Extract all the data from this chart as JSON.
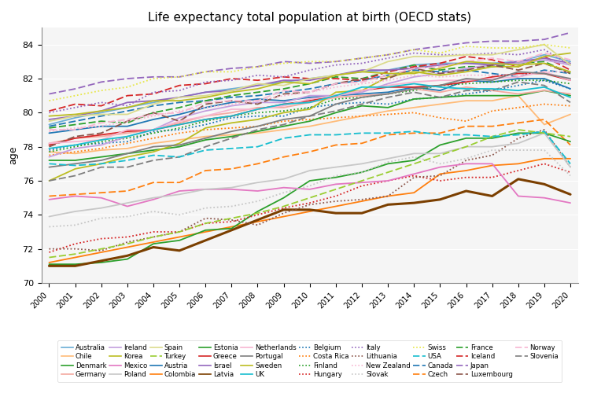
{
  "title": "Life expectancy total population at birth (OECD stats)",
  "ylabel": "age",
  "years": [
    2000,
    2001,
    2002,
    2003,
    2004,
    2005,
    2006,
    2007,
    2008,
    2009,
    2010,
    2011,
    2012,
    2013,
    2014,
    2015,
    2016,
    2017,
    2018,
    2019,
    2020
  ],
  "ylim": [
    70,
    85
  ],
  "series": {
    "Australia": {
      "color": "#6baed6",
      "linestyle": "solid",
      "lw": 1.3,
      "data": [
        79.3,
        79.7,
        80.0,
        80.3,
        80.6,
        80.9,
        81.2,
        81.4,
        81.6,
        81.8,
        82.0,
        82.2,
        82.4,
        82.5,
        82.8,
        82.9,
        82.9,
        82.9,
        83.0,
        83.4,
        83.0
      ]
    },
    "Austria": {
      "color": "#1f77b4",
      "linestyle": "solid",
      "lw": 1.3,
      "data": [
        78.8,
        79.0,
        79.2,
        79.2,
        79.6,
        79.9,
        80.3,
        80.6,
        80.8,
        80.7,
        80.9,
        81.0,
        81.1,
        81.2,
        81.5,
        81.3,
        81.9,
        81.8,
        82.0,
        82.0,
        81.4
      ]
    },
    "Belgium": {
      "color": "#1f77b4",
      "linestyle": "dotted",
      "lw": 1.3,
      "data": [
        77.8,
        78.1,
        78.2,
        78.3,
        78.9,
        79.0,
        79.3,
        79.7,
        79.8,
        79.8,
        80.3,
        80.5,
        80.6,
        80.5,
        80.8,
        80.9,
        81.1,
        81.3,
        81.6,
        81.9,
        81.4
      ]
    },
    "Canada": {
      "color": "#1f77b4",
      "linestyle": "dashed",
      "lw": 1.3,
      "data": [
        79.2,
        79.5,
        79.8,
        80.1,
        80.4,
        80.6,
        80.7,
        80.9,
        81.0,
        81.2,
        81.4,
        81.7,
        81.9,
        82.2,
        82.5,
        82.4,
        82.5,
        82.3,
        82.1,
        82.5,
        82.3
      ]
    },
    "Chile": {
      "color": "#ffbb78",
      "linestyle": "solid",
      "lw": 1.3,
      "data": [
        77.7,
        77.6,
        77.8,
        77.9,
        78.2,
        78.4,
        78.6,
        78.7,
        78.8,
        79.0,
        79.2,
        79.5,
        79.8,
        80.1,
        80.3,
        80.5,
        80.7,
        80.7,
        81.0,
        79.3,
        79.9
      ]
    },
    "Colombia": {
      "color": "#ff7f0e",
      "linestyle": "solid",
      "lw": 1.3,
      "data": [
        71.2,
        71.5,
        71.8,
        72.1,
        72.4,
        72.7,
        73.0,
        73.3,
        73.6,
        73.9,
        74.2,
        74.5,
        74.8,
        75.1,
        75.3,
        76.4,
        76.6,
        76.9,
        77.0,
        77.3,
        77.3
      ]
    },
    "Costa Rica": {
      "color": "#ff7f0e",
      "linestyle": "dotted",
      "lw": 1.3,
      "data": [
        77.5,
        77.7,
        77.9,
        78.2,
        78.5,
        78.8,
        79.0,
        79.1,
        79.2,
        79.5,
        79.6,
        79.7,
        79.8,
        79.9,
        80.0,
        79.7,
        79.5,
        80.1,
        80.3,
        80.5,
        80.4
      ]
    },
    "Czech": {
      "color": "#ff7f0e",
      "linestyle": "dashed",
      "lw": 1.3,
      "data": [
        75.1,
        75.2,
        75.3,
        75.4,
        75.9,
        75.9,
        76.6,
        76.7,
        77.0,
        77.4,
        77.7,
        78.1,
        78.2,
        78.7,
        78.8,
        78.8,
        79.2,
        79.2,
        79.4,
        79.6,
        78.1
      ]
    },
    "Denmark": {
      "color": "#2ca02c",
      "linestyle": "solid",
      "lw": 1.3,
      "data": [
        77.2,
        77.2,
        77.4,
        77.6,
        77.8,
        78.0,
        78.4,
        78.6,
        78.9,
        79.2,
        79.5,
        80.0,
        80.4,
        80.3,
        80.8,
        80.9,
        81.0,
        81.0,
        81.0,
        81.3,
        81.0
      ]
    },
    "Estonia": {
      "color": "#2ca02c",
      "linestyle": "solid",
      "lw": 1.3,
      "data": [
        71.1,
        71.1,
        71.2,
        71.4,
        72.3,
        72.5,
        73.1,
        73.2,
        74.2,
        75.0,
        76.0,
        76.2,
        76.5,
        77.0,
        77.2,
        78.1,
        78.5,
        78.5,
        78.8,
        78.8,
        78.3
      ]
    },
    "Finland": {
      "color": "#2ca02c",
      "linestyle": "dotted",
      "lw": 1.3,
      "data": [
        77.7,
        78.0,
        78.3,
        78.5,
        78.8,
        79.1,
        79.5,
        79.8,
        80.0,
        80.1,
        80.3,
        80.8,
        80.9,
        81.1,
        81.3,
        81.6,
        81.7,
        81.8,
        81.9,
        81.9,
        81.7
      ]
    },
    "France": {
      "color": "#2ca02c",
      "linestyle": "dashed",
      "lw": 1.3,
      "data": [
        79.1,
        79.3,
        79.5,
        79.4,
        80.0,
        80.3,
        80.7,
        81.0,
        81.2,
        81.4,
        81.7,
        82.1,
        82.0,
        82.4,
        82.8,
        82.5,
        82.7,
        82.7,
        82.9,
        83.0,
        82.3
      ]
    },
    "Germany": {
      "color": "#f4a9a0",
      "linestyle": "solid",
      "lw": 1.3,
      "data": [
        78.2,
        78.5,
        78.6,
        78.8,
        79.0,
        79.4,
        79.8,
        80.0,
        80.3,
        80.3,
        80.6,
        80.9,
        81.0,
        81.1,
        81.4,
        81.2,
        81.5,
        81.3,
        81.1,
        81.3,
        81.1
      ]
    },
    "Greece": {
      "color": "#d62728",
      "linestyle": "solid",
      "lw": 1.3,
      "data": [
        78.1,
        78.5,
        78.7,
        78.9,
        79.0,
        79.3,
        79.6,
        79.8,
        80.2,
        80.5,
        80.7,
        81.0,
        81.3,
        81.5,
        81.5,
        81.6,
        81.8,
        82.1,
        82.3,
        82.3,
        81.9
      ]
    },
    "Hungary": {
      "color": "#d62728",
      "linestyle": "dotted",
      "lw": 1.3,
      "data": [
        71.8,
        72.3,
        72.6,
        72.7,
        73.0,
        73.0,
        73.5,
        73.6,
        74.0,
        74.4,
        74.7,
        75.1,
        75.7,
        76.0,
        76.3,
        76.0,
        76.2,
        76.2,
        76.6,
        77.0,
        76.5
      ]
    },
    "Iceland": {
      "color": "#d62728",
      "linestyle": "dashed",
      "lw": 1.3,
      "data": [
        80.1,
        80.5,
        80.4,
        81.0,
        81.1,
        81.6,
        81.7,
        82.0,
        81.9,
        82.1,
        82.0,
        82.0,
        81.9,
        82.4,
        82.7,
        82.9,
        83.3,
        83.1,
        82.7,
        83.3,
        82.5
      ]
    },
    "Ireland": {
      "color": "#c49fde",
      "linestyle": "solid",
      "lw": 1.3,
      "data": [
        77.4,
        77.9,
        78.1,
        78.6,
        79.0,
        79.7,
        80.1,
        80.4,
        80.6,
        80.6,
        81.0,
        81.0,
        81.2,
        81.7,
        82.1,
        82.3,
        82.6,
        82.8,
        82.9,
        83.1,
        82.8
      ]
    },
    "Israel": {
      "color": "#9467bd",
      "linestyle": "solid",
      "lw": 1.3,
      "data": [
        79.6,
        79.8,
        80.1,
        80.6,
        80.7,
        80.9,
        81.2,
        81.3,
        81.6,
        81.9,
        81.9,
        82.2,
        82.5,
        82.5,
        82.6,
        82.8,
        82.9,
        82.8,
        83.0,
        83.2,
        82.9
      ]
    },
    "Italy": {
      "color": "#9467bd",
      "linestyle": "dotted",
      "lw": 1.3,
      "data": [
        80.0,
        80.3,
        80.6,
        80.4,
        81.2,
        81.3,
        81.8,
        81.9,
        82.2,
        82.1,
        82.5,
        82.8,
        82.9,
        83.2,
        83.5,
        83.4,
        83.4,
        83.5,
        83.4,
        83.7,
        82.8
      ]
    },
    "Japan": {
      "color": "#9467bd",
      "linestyle": "dashed",
      "lw": 1.3,
      "data": [
        81.1,
        81.4,
        81.8,
        82.0,
        82.1,
        82.1,
        82.4,
        82.6,
        82.7,
        83.0,
        82.9,
        83.0,
        83.2,
        83.4,
        83.7,
        83.9,
        84.1,
        84.2,
        84.2,
        84.3,
        84.7
      ]
    },
    "Korea": {
      "color": "#bcbd22",
      "linestyle": "solid",
      "lw": 1.3,
      "data": [
        76.0,
        76.7,
        77.0,
        77.4,
        77.7,
        78.2,
        79.1,
        79.4,
        79.6,
        80.0,
        80.2,
        81.2,
        81.3,
        82.1,
        82.4,
        82.2,
        82.4,
        82.7,
        82.7,
        83.3,
        83.5
      ]
    },
    "Latvia": {
      "color": "#7b3f00",
      "linestyle": "solid",
      "lw": 2.2,
      "data": [
        71.0,
        71.0,
        71.3,
        71.6,
        72.1,
        71.9,
        72.5,
        73.1,
        73.7,
        74.3,
        74.3,
        74.1,
        74.1,
        74.6,
        74.7,
        74.9,
        75.4,
        75.1,
        76.1,
        75.8,
        75.2
      ]
    },
    "Lithuania": {
      "color": "#8c564b",
      "linestyle": "dotted",
      "lw": 1.3,
      "data": [
        72.0,
        72.0,
        71.9,
        72.4,
        72.7,
        73.0,
        73.8,
        73.7,
        73.4,
        74.1,
        74.6,
        74.8,
        74.9,
        75.1,
        76.2,
        76.3,
        77.2,
        77.5,
        78.5,
        79.0,
        76.8
      ]
    },
    "Luxembourg": {
      "color": "#8c564b",
      "linestyle": "dashed",
      "lw": 1.3,
      "data": [
        78.0,
        78.6,
        78.8,
        79.5,
        80.0,
        79.5,
        80.5,
        80.7,
        80.5,
        81.1,
        81.2,
        81.7,
        82.0,
        82.0,
        82.6,
        82.3,
        82.5,
        82.8,
        82.5,
        82.9,
        82.3
      ]
    },
    "Mexico": {
      "color": "#e377c2",
      "linestyle": "solid",
      "lw": 1.3,
      "data": [
        74.9,
        75.1,
        75.0,
        74.5,
        74.9,
        75.4,
        75.5,
        75.5,
        75.4,
        75.6,
        75.5,
        75.8,
        75.9,
        76.0,
        76.4,
        76.8,
        77.0,
        77.0,
        75.1,
        75.0,
        74.7
      ]
    },
    "Netherlands": {
      "color": "#f7b6d2",
      "linestyle": "solid",
      "lw": 1.3,
      "data": [
        78.2,
        78.3,
        78.4,
        79.0,
        79.0,
        79.5,
        79.8,
        80.2,
        80.2,
        80.4,
        80.8,
        81.0,
        81.3,
        81.6,
        81.8,
        81.9,
        81.9,
        82.0,
        82.1,
        82.4,
        81.9
      ]
    },
    "New Zealand": {
      "color": "#f7b6d2",
      "linestyle": "dotted",
      "lw": 1.3,
      "data": [
        78.9,
        79.1,
        79.2,
        79.5,
        79.8,
        80.1,
        80.3,
        80.5,
        80.7,
        81.0,
        81.2,
        81.5,
        81.7,
        81.9,
        82.2,
        82.1,
        82.2,
        82.2,
        82.2,
        82.4,
        82.4
      ]
    },
    "Norway": {
      "color": "#f7b6d2",
      "linestyle": "dashed",
      "lw": 1.3,
      "data": [
        79.0,
        79.0,
        79.4,
        79.6,
        79.9,
        80.0,
        80.6,
        80.7,
        80.7,
        81.3,
        81.2,
        81.7,
        81.8,
        82.2,
        82.6,
        82.7,
        83.0,
        83.2,
        83.0,
        83.5,
        83.1
      ]
    },
    "Poland": {
      "color": "#c7c7c7",
      "linestyle": "solid",
      "lw": 1.3,
      "data": [
        73.9,
        74.2,
        74.4,
        74.7,
        75.0,
        75.2,
        75.5,
        75.6,
        75.9,
        76.1,
        76.6,
        76.8,
        77.0,
        77.3,
        77.6,
        77.6,
        78.0,
        78.0,
        78.2,
        78.8,
        76.8
      ]
    },
    "Portugal": {
      "color": "#7f7f7f",
      "linestyle": "solid",
      "lw": 1.3,
      "data": [
        76.8,
        77.0,
        77.2,
        77.6,
        78.0,
        78.1,
        78.5,
        78.9,
        79.2,
        79.6,
        79.8,
        80.5,
        80.9,
        81.1,
        81.4,
        81.6,
        82.0,
        81.9,
        82.4,
        82.3,
        82.0
      ]
    },
    "Slovak": {
      "color": "#c7c7c7",
      "linestyle": "dotted",
      "lw": 1.3,
      "data": [
        73.3,
        73.4,
        73.8,
        73.9,
        74.2,
        74.0,
        74.4,
        74.5,
        74.8,
        75.3,
        75.7,
        76.3,
        76.5,
        77.1,
        77.4,
        77.0,
        77.3,
        77.8,
        77.8,
        77.8,
        76.3
      ]
    },
    "Slovenia": {
      "color": "#7f7f7f",
      "linestyle": "dashed",
      "lw": 1.3,
      "data": [
        76.0,
        76.3,
        76.8,
        76.8,
        77.2,
        77.4,
        78.0,
        78.5,
        79.0,
        79.3,
        79.8,
        80.1,
        80.5,
        80.9,
        81.2,
        80.9,
        81.3,
        81.3,
        81.8,
        81.6,
        80.6
      ]
    },
    "Spain": {
      "color": "#dbdb8d",
      "linestyle": "solid",
      "lw": 1.3,
      "data": [
        79.5,
        79.8,
        79.9,
        79.9,
        80.5,
        80.9,
        81.0,
        81.3,
        81.7,
        81.6,
        82.0,
        82.2,
        82.4,
        83.0,
        83.3,
        83.3,
        83.4,
        83.4,
        83.7,
        84.0,
        82.8
      ]
    },
    "Sweden": {
      "color": "#bcbd22",
      "linestyle": "solid",
      "lw": 1.3,
      "data": [
        79.8,
        79.9,
        80.1,
        80.3,
        80.7,
        80.7,
        80.9,
        81.2,
        81.4,
        81.8,
        81.7,
        82.2,
        82.4,
        82.3,
        82.3,
        82.6,
        83.0,
        82.9,
        82.8,
        82.9,
        82.4
      ]
    },
    "Swiss": {
      "color": "#e7e74a",
      "linestyle": "dotted",
      "lw": 1.3,
      "data": [
        80.7,
        81.0,
        81.3,
        81.5,
        82.0,
        82.1,
        82.4,
        82.4,
        82.7,
        82.9,
        83.0,
        83.0,
        83.2,
        83.4,
        83.7,
        83.5,
        83.9,
        83.8,
        83.8,
        84.0,
        83.8
      ]
    },
    "Turkey": {
      "color": "#9acd32",
      "linestyle": "dashed",
      "lw": 1.3,
      "data": [
        71.5,
        71.7,
        72.0,
        72.3,
        72.7,
        73.0,
        73.5,
        73.8,
        74.1,
        74.5,
        75.0,
        75.5,
        76.0,
        76.5,
        77.0,
        77.5,
        78.0,
        78.6,
        79.0,
        78.8,
        78.6
      ]
    },
    "UK": {
      "color": "#17becf",
      "linestyle": "solid",
      "lw": 1.3,
      "data": [
        77.9,
        78.1,
        78.4,
        78.6,
        79.0,
        79.3,
        79.6,
        79.8,
        80.2,
        80.5,
        80.6,
        81.0,
        81.5,
        81.5,
        81.7,
        81.5,
        81.4,
        81.4,
        81.3,
        81.5,
        80.9
      ]
    },
    "USA": {
      "color": "#17becf",
      "linestyle": "dashed",
      "lw": 1.3,
      "data": [
        77.0,
        76.9,
        77.0,
        77.2,
        77.5,
        77.4,
        77.8,
        77.9,
        78.0,
        78.5,
        78.7,
        78.7,
        78.8,
        78.8,
        78.9,
        78.7,
        78.7,
        78.6,
        78.7,
        78.9,
        77.0
      ]
    }
  },
  "legend_rows": [
    [
      "Australia",
      "Chile",
      "Denmark",
      "Germany",
      "Ireland",
      "Korea",
      "Mexico",
      "Poland",
      "Spain",
      "Turkey"
    ],
    [
      "Austria",
      "Colombia",
      "Estonia",
      "Greece",
      "Israel",
      "Latvia",
      "Netherlands",
      "Portugal",
      "Sweden",
      "UK"
    ],
    [
      "Belgium",
      "Costa Rica",
      "Finland",
      "Hungary",
      "Italy",
      "Lithuania",
      "New Zealand",
      "Slovak",
      "Swiss",
      "USA"
    ],
    [
      "Canada",
      "Czech",
      "France",
      "Iceland",
      "Japan",
      "Luxembourg",
      "Norway",
      "Slovenia",
      null,
      null
    ]
  ],
  "bg_color": "#f5f5f5"
}
